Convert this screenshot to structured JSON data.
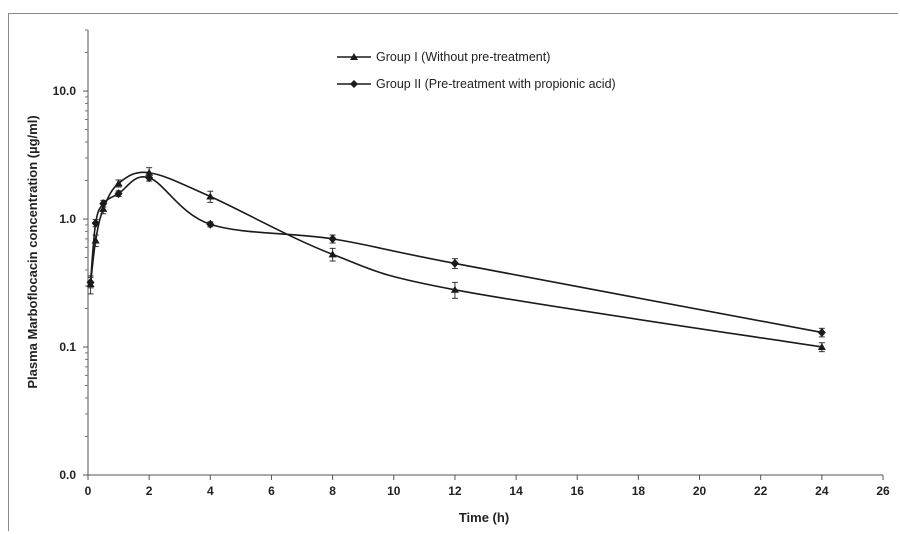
{
  "chart_data": {
    "type": "line",
    "xlabel": "Time (h)",
    "ylabel": "Plasma Marboflocacin concentration (µg/ml)",
    "x_scale": "linear",
    "y_scale": "log",
    "xlim": [
      0,
      26
    ],
    "ylim": [
      0.01,
      30
    ],
    "x_ticks": [
      0,
      2,
      4,
      6,
      8,
      10,
      12,
      14,
      16,
      18,
      20,
      22,
      24,
      26
    ],
    "y_ticks": [
      {
        "value": 0.01,
        "label": "0.0"
      },
      {
        "value": 0.1,
        "label": "0.1"
      },
      {
        "value": 1,
        "label": "1.0"
      },
      {
        "value": 10,
        "label": "10.0"
      }
    ],
    "legend_position": "top-center",
    "grid": false,
    "series": [
      {
        "name": "Group I (Without pre-treatment)",
        "marker": "triangle",
        "color": "#1a1a1a",
        "x": [
          0.083,
          0.25,
          0.5,
          1,
          2,
          4,
          8,
          12,
          24
        ],
        "y": [
          0.31,
          0.68,
          1.2,
          1.9,
          2.3,
          1.5,
          0.53,
          0.28,
          0.1
        ],
        "error": [
          0.05,
          0.07,
          0.1,
          0.12,
          0.22,
          0.15,
          0.06,
          0.04,
          0.008
        ]
      },
      {
        "name": "Group II (Pre-treatment with propionic acid)",
        "marker": "diamond",
        "color": "#1a1a1a",
        "x": [
          0.083,
          0.25,
          0.5,
          1,
          2,
          4,
          8,
          12,
          24
        ],
        "y": [
          0.32,
          0.93,
          1.32,
          1.58,
          2.1,
          0.91,
          0.7,
          0.45,
          0.13
        ],
        "error": [
          0.03,
          0.06,
          0.08,
          0.08,
          0.12,
          0.04,
          0.05,
          0.04,
          0.01
        ]
      }
    ]
  }
}
